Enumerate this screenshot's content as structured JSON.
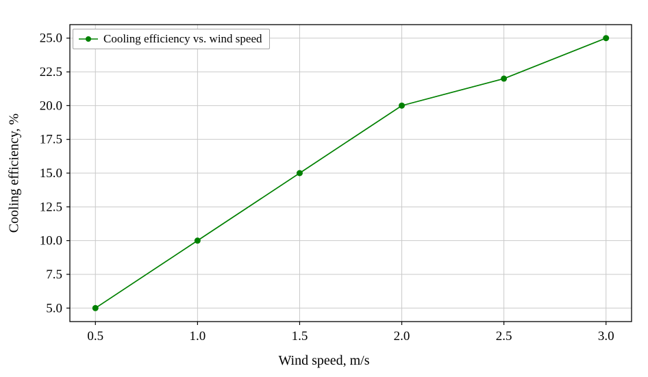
{
  "chart_data": {
    "type": "line",
    "title": "",
    "xlabel": "Wind speed, m/s",
    "ylabel": "Cooling efficiency, %",
    "legend": {
      "label": "Cooling efficiency vs. wind speed",
      "position": "upper left"
    },
    "x": [
      0.5,
      1.0,
      1.5,
      2.0,
      2.5,
      3.0
    ],
    "y": [
      5,
      10,
      15,
      20,
      22,
      25
    ],
    "xlim": [
      0.375,
      3.125
    ],
    "ylim": [
      4.0,
      26.0
    ],
    "xticks": [
      {
        "v": 0.5,
        "label": "0.5"
      },
      {
        "v": 1.0,
        "label": "1.0"
      },
      {
        "v": 1.5,
        "label": "1.5"
      },
      {
        "v": 2.0,
        "label": "2.0"
      },
      {
        "v": 2.5,
        "label": "2.5"
      },
      {
        "v": 3.0,
        "label": "3.0"
      }
    ],
    "yticks": [
      {
        "v": 5.0,
        "label": "5.0"
      },
      {
        "v": 7.5,
        "label": "7.5"
      },
      {
        "v": 10.0,
        "label": "10.0"
      },
      {
        "v": 12.5,
        "label": "12.5"
      },
      {
        "v": 15.0,
        "label": "15.0"
      },
      {
        "v": 17.5,
        "label": "17.5"
      },
      {
        "v": 20.0,
        "label": "20.0"
      },
      {
        "v": 22.5,
        "label": "22.5"
      },
      {
        "v": 25.0,
        "label": "25.0"
      }
    ],
    "grid": true,
    "line_color": "#008000",
    "grid_color": "#c9c9c9",
    "spine_color": "#000000",
    "marker": "o"
  }
}
